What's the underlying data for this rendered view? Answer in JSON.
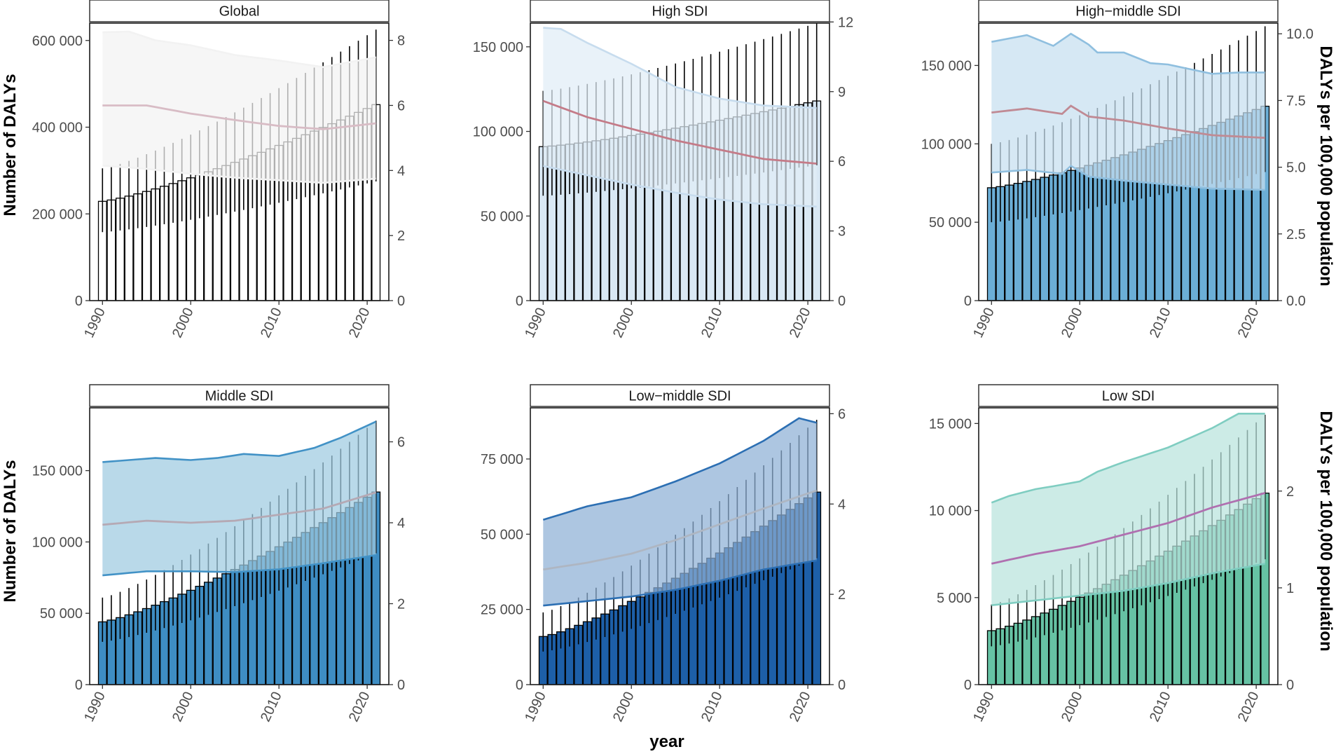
{
  "figure": {
    "y_left_title": "Number of DALYs",
    "y_right_title": "DALYs per 100,000 population",
    "x_title": "year"
  },
  "chart_data": [
    {
      "type": "bar",
      "title": "Global",
      "xlabel": "year",
      "ylabel": "Number of DALYs",
      "y2label": "DALYs per 100,000 population",
      "x_range": [
        1990,
        2021
      ],
      "x_ticks": [
        1990,
        2000,
        2010,
        2020
      ],
      "ylim": [
        0,
        640000
      ],
      "y_ticks": [
        0,
        200000,
        400000,
        600000
      ],
      "y_tick_labels": [
        "0",
        "200 000",
        "400 000",
        "600 000"
      ],
      "y2lim": [
        0,
        8.53
      ],
      "y2_ticks": [
        0,
        2,
        4,
        6,
        8
      ],
      "y2_tick_labels": [
        "0",
        "2",
        "4",
        "6",
        "8"
      ],
      "colors": {
        "bar": "#ffffff",
        "ribbon": "#f2f2f2",
        "ribbon_edge": "#f2f2f2",
        "line": "#d8bcc5",
        "whisker": "#000000"
      },
      "series": [
        {
          "name": "Number of DALYs",
          "kind": "bar",
          "start": 229000,
          "end": 452000,
          "lower_start": 158000,
          "lower_end": 275000,
          "upper_start": 305000,
          "upper_end": 625000
        },
        {
          "name": "Rate per 100,000 (mean)",
          "kind": "line",
          "axis": "right",
          "points": [
            [
              1990,
              6.0
            ],
            [
              1995,
              6.0
            ],
            [
              2000,
              5.75
            ],
            [
              2005,
              5.55
            ],
            [
              2010,
              5.37
            ],
            [
              2015,
              5.27
            ],
            [
              2021,
              5.45
            ]
          ]
        },
        {
          "name": "Rate lower",
          "kind": "ribbon_lower",
          "axis": "right",
          "points": [
            [
              1990,
              4.15
            ],
            [
              1995,
              4.05
            ],
            [
              2000,
              3.9
            ],
            [
              2005,
              3.78
            ],
            [
              2010,
              3.7
            ],
            [
              2015,
              3.62
            ],
            [
              2021,
              3.75
            ]
          ]
        },
        {
          "name": "Rate upper",
          "kind": "ribbon_upper",
          "axis": "right",
          "points": [
            [
              1990,
              8.25
            ],
            [
              1993,
              8.27
            ],
            [
              1996,
              8.0
            ],
            [
              2000,
              7.85
            ],
            [
              2005,
              7.55
            ],
            [
              2010,
              7.38
            ],
            [
              2015,
              7.18
            ],
            [
              2021,
              7.48
            ]
          ]
        }
      ]
    },
    {
      "type": "bar",
      "title": "High SDI",
      "xlabel": "year",
      "ylabel": "Number of DALYs",
      "y2label": "DALYs per 100,000 population",
      "x_range": [
        1990,
        2021
      ],
      "x_ticks": [
        1990,
        2000,
        2010,
        2020
      ],
      "ylim": [
        0,
        164000
      ],
      "y_ticks": [
        0,
        50000,
        100000,
        150000
      ],
      "y_tick_labels": [
        "0",
        "50 000",
        "100 000",
        "150 000"
      ],
      "y2lim": [
        0,
        11.95
      ],
      "y2_ticks": [
        0,
        3,
        6,
        9,
        12
      ],
      "y2_tick_labels": [
        "0",
        "3",
        "6",
        "9",
        "12"
      ],
      "colors": {
        "bar": "#d9e8f4",
        "ribbon": "#e1edf7",
        "ribbon_edge": "#c7dcee",
        "line": "#c47b88",
        "whisker": "#000000"
      },
      "series": [
        {
          "name": "Number of DALYs",
          "kind": "bar",
          "start": 91000,
          "end": 118000,
          "lower_start": 62000,
          "lower_end": 80000,
          "upper_start": 124000,
          "upper_end": 164000
        },
        {
          "name": "Rate per 100,000 (mean)",
          "kind": "line",
          "axis": "right",
          "points": [
            [
              1990,
              8.6
            ],
            [
              1995,
              7.9
            ],
            [
              2000,
              7.4
            ],
            [
              2005,
              6.9
            ],
            [
              2010,
              6.5
            ],
            [
              2015,
              6.1
            ],
            [
              2021,
              5.9
            ]
          ]
        },
        {
          "name": "Rate lower",
          "kind": "ribbon_lower",
          "axis": "right",
          "points": [
            [
              1990,
              5.8
            ],
            [
              1995,
              5.4
            ],
            [
              2000,
              5.0
            ],
            [
              2005,
              4.65
            ],
            [
              2010,
              4.35
            ],
            [
              2015,
              4.15
            ],
            [
              2021,
              4.05
            ]
          ]
        },
        {
          "name": "Rate upper",
          "kind": "ribbon_upper",
          "axis": "right",
          "points": [
            [
              1990,
              11.75
            ],
            [
              1992,
              11.7
            ],
            [
              1995,
              11.1
            ],
            [
              2000,
              10.2
            ],
            [
              2005,
              9.2
            ],
            [
              2010,
              8.7
            ],
            [
              2015,
              8.4
            ],
            [
              2021,
              8.3
            ]
          ]
        }
      ]
    },
    {
      "type": "bar",
      "title": "High−middle SDI",
      "xlabel": "year",
      "ylabel": "Number of DALYs",
      "y2label": "DALYs per 100,000 population",
      "x_range": [
        1990,
        2021
      ],
      "x_ticks": [
        1990,
        2000,
        2010,
        2020
      ],
      "ylim": [
        0,
        177000
      ],
      "y_ticks": [
        0,
        50000,
        100000,
        150000
      ],
      "y_tick_labels": [
        "0",
        "50 000",
        "100 000",
        "150 000"
      ],
      "y2lim": [
        0,
        10.4
      ],
      "y2_ticks": [
        0,
        2.5,
        5,
        7.5,
        10
      ],
      "y2_tick_labels": [
        "0.0",
        "2.5",
        "5.0",
        "7.5",
        "10.0"
      ],
      "colors": {
        "bar": "#6baed6",
        "ribbon": "#c6dff0",
        "ribbon_edge": "#8fbfdf",
        "line": "#c08a94",
        "whisker": "#000000"
      },
      "series": [
        {
          "name": "Number of DALYs",
          "kind": "bar",
          "start": 72000,
          "end": 124000,
          "lower_start": 50000,
          "lower_end": 82000,
          "upper_start": 100000,
          "upper_end": 175000
        },
        {
          "name": "Rate per 100,000 (mean)",
          "kind": "line",
          "axis": "right",
          "points": [
            [
              1990,
              7.05
            ],
            [
              1994,
              7.2
            ],
            [
              1998,
              7.0
            ],
            [
              1999,
              7.3
            ],
            [
              2001,
              6.9
            ],
            [
              2005,
              6.75
            ],
            [
              2010,
              6.45
            ],
            [
              2015,
              6.2
            ],
            [
              2021,
              6.1
            ]
          ]
        },
        {
          "name": "Rate lower",
          "kind": "ribbon_lower",
          "axis": "right",
          "points": [
            [
              1990,
              4.8
            ],
            [
              1994,
              4.9
            ],
            [
              1998,
              4.75
            ],
            [
              1999,
              5.05
            ],
            [
              2001,
              4.65
            ],
            [
              2005,
              4.5
            ],
            [
              2010,
              4.35
            ],
            [
              2015,
              4.2
            ],
            [
              2021,
              4.15
            ]
          ]
        },
        {
          "name": "Rate upper",
          "kind": "ribbon_upper",
          "axis": "right",
          "points": [
            [
              1990,
              9.7
            ],
            [
              1994,
              9.95
            ],
            [
              1997,
              9.55
            ],
            [
              1999,
              10.0
            ],
            [
              2001,
              9.6
            ],
            [
              2002,
              9.3
            ],
            [
              2005,
              9.3
            ],
            [
              2008,
              8.9
            ],
            [
              2010,
              8.85
            ],
            [
              2015,
              8.5
            ],
            [
              2018,
              8.55
            ],
            [
              2021,
              8.55
            ]
          ]
        }
      ]
    },
    {
      "type": "bar",
      "title": "Middle SDI",
      "xlabel": "year",
      "ylabel": "Number of DALYs",
      "y2label": "DALYs per 100,000 population",
      "x_range": [
        1990,
        2021
      ],
      "x_ticks": [
        1990,
        2000,
        2010,
        2020
      ],
      "ylim": [
        0,
        194000
      ],
      "y_ticks": [
        0,
        50000,
        100000,
        150000
      ],
      "y_tick_labels": [
        "0",
        "50 000",
        "100 000",
        "150 000"
      ],
      "y2lim": [
        0,
        6.84
      ],
      "y2_ticks": [
        0,
        2,
        4,
        6
      ],
      "y2_tick_labels": [
        "0",
        "2",
        "4",
        "6"
      ],
      "colors": {
        "bar": "#3e8dc3",
        "ribbon": "#9ecae1",
        "ribbon_edge": "#4292c6",
        "line": "#b5a9b4",
        "whisker": "#000000"
      },
      "series": [
        {
          "name": "Number of DALYs",
          "kind": "bar",
          "start": 44000,
          "end": 135000,
          "lower_start": 30000,
          "lower_end": 92000,
          "upper_start": 61000,
          "upper_end": 185000
        },
        {
          "name": "Rate per 100,000 (mean)",
          "kind": "line",
          "axis": "right",
          "points": [
            [
              1990,
              3.95
            ],
            [
              1995,
              4.05
            ],
            [
              2000,
              4.0
            ],
            [
              2005,
              4.05
            ],
            [
              2010,
              4.2
            ],
            [
              2015,
              4.35
            ],
            [
              2021,
              4.75
            ]
          ]
        },
        {
          "name": "Rate lower",
          "kind": "ribbon_lower",
          "axis": "right",
          "points": [
            [
              1990,
              2.7
            ],
            [
              1995,
              2.8
            ],
            [
              2000,
              2.8
            ],
            [
              2005,
              2.78
            ],
            [
              2010,
              2.85
            ],
            [
              2015,
              3.0
            ],
            [
              2021,
              3.2
            ]
          ]
        },
        {
          "name": "Rate upper",
          "kind": "ribbon_upper",
          "axis": "right",
          "points": [
            [
              1990,
              5.5
            ],
            [
              1993,
              5.55
            ],
            [
              1996,
              5.6
            ],
            [
              2000,
              5.55
            ],
            [
              2003,
              5.6
            ],
            [
              2006,
              5.7
            ],
            [
              2010,
              5.65
            ],
            [
              2014,
              5.85
            ],
            [
              2017,
              6.1
            ],
            [
              2021,
              6.5
            ]
          ]
        }
      ]
    },
    {
      "type": "bar",
      "title": "Low−middle SDI",
      "xlabel": "year",
      "ylabel": "Number of DALYs",
      "y2label": "DALYs per 100,000 population",
      "x_range": [
        1990,
        2021
      ],
      "x_ticks": [
        1990,
        2000,
        2010,
        2020
      ],
      "ylim": [
        0,
        92000
      ],
      "y_ticks": [
        0,
        25000,
        50000,
        75000
      ],
      "y_tick_labels": [
        "0",
        "25 000",
        "50 000",
        "75 000"
      ],
      "y2lim": [
        0,
        6.13
      ],
      "y2_ticks": [
        0,
        2,
        4,
        6
      ],
      "y2_tick_labels": [
        "0",
        "2",
        "4",
        "6"
      ],
      "colors": {
        "bar": "#1d5fa8",
        "ribbon": "#8eb0d6",
        "ribbon_edge": "#2c6fb3",
        "line": "#aeb6c2",
        "whisker": "#000000"
      },
      "series": [
        {
          "name": "Number of DALYs",
          "kind": "bar",
          "start": 16000,
          "end": 64000,
          "lower_start": 11000,
          "lower_end": 42000,
          "upper_start": 24000,
          "upper_end": 88000
        },
        {
          "name": "Rate per 100,000 (mean)",
          "kind": "line",
          "axis": "right",
          "points": [
            [
              1990,
              2.55
            ],
            [
              1995,
              2.7
            ],
            [
              2000,
              2.9
            ],
            [
              2005,
              3.2
            ],
            [
              2010,
              3.55
            ],
            [
              2015,
              3.9
            ],
            [
              2021,
              4.3
            ]
          ]
        },
        {
          "name": "Rate lower",
          "kind": "ribbon_lower",
          "axis": "right",
          "points": [
            [
              1990,
              1.75
            ],
            [
              1995,
              1.85
            ],
            [
              2000,
              1.95
            ],
            [
              2005,
              2.1
            ],
            [
              2010,
              2.3
            ],
            [
              2015,
              2.55
            ],
            [
              2021,
              2.75
            ]
          ]
        },
        {
          "name": "Rate upper",
          "kind": "ribbon_upper",
          "axis": "right",
          "points": [
            [
              1990,
              3.65
            ],
            [
              1995,
              3.95
            ],
            [
              2000,
              4.15
            ],
            [
              2005,
              4.5
            ],
            [
              2010,
              4.9
            ],
            [
              2015,
              5.4
            ],
            [
              2019,
              5.9
            ],
            [
              2021,
              5.8
            ]
          ]
        }
      ]
    },
    {
      "type": "bar",
      "title": "Low SDI",
      "xlabel": "year",
      "ylabel": "Number of DALYs",
      "y2label": "DALYs per 100,000 population",
      "x_range": [
        1990,
        2021
      ],
      "x_ticks": [
        1990,
        2000,
        2010,
        2020
      ],
      "ylim": [
        0,
        15900
      ],
      "y_ticks": [
        0,
        5000,
        10000,
        15000
      ],
      "y_tick_labels": [
        "0",
        "5 000",
        "10 000",
        "15 000"
      ],
      "y2lim": [
        0,
        2.86
      ],
      "y2_ticks": [
        0,
        1,
        2
      ],
      "y2_tick_labels": [
        "0",
        "1",
        "2"
      ],
      "colors": {
        "bar": "#66c2a4",
        "ribbon": "#b8e3dc",
        "ribbon_edge": "#7fcdc1",
        "line": "#b070b0",
        "whisker": "#000000"
      },
      "series": [
        {
          "name": "Number of DALYs",
          "kind": "bar",
          "start": 3100,
          "end": 11000,
          "lower_start": 2200,
          "lower_end": 7200,
          "upper_start": 4600,
          "upper_end": 15500
        },
        {
          "name": "Rate per 100,000 (mean)",
          "kind": "line",
          "axis": "right",
          "points": [
            [
              1990,
              1.25
            ],
            [
              1995,
              1.35
            ],
            [
              2000,
              1.43
            ],
            [
              2005,
              1.55
            ],
            [
              2010,
              1.67
            ],
            [
              2015,
              1.83
            ],
            [
              2021,
              1.98
            ]
          ]
        },
        {
          "name": "Rate lower",
          "kind": "ribbon_lower",
          "axis": "right",
          "points": [
            [
              1990,
              0.82
            ],
            [
              1995,
              0.87
            ],
            [
              2000,
              0.92
            ],
            [
              2005,
              0.97
            ],
            [
              2010,
              1.05
            ],
            [
              2015,
              1.15
            ],
            [
              2021,
              1.25
            ]
          ]
        },
        {
          "name": "Rate upper",
          "kind": "ribbon_upper",
          "axis": "right",
          "points": [
            [
              1990,
              1.88
            ],
            [
              1992,
              1.95
            ],
            [
              1995,
              2.02
            ],
            [
              1997,
              2.05
            ],
            [
              2000,
              2.1
            ],
            [
              2002,
              2.2
            ],
            [
              2005,
              2.3
            ],
            [
              2010,
              2.45
            ],
            [
              2015,
              2.65
            ],
            [
              2018,
              2.8
            ],
            [
              2021,
              2.8
            ]
          ]
        }
      ]
    }
  ]
}
